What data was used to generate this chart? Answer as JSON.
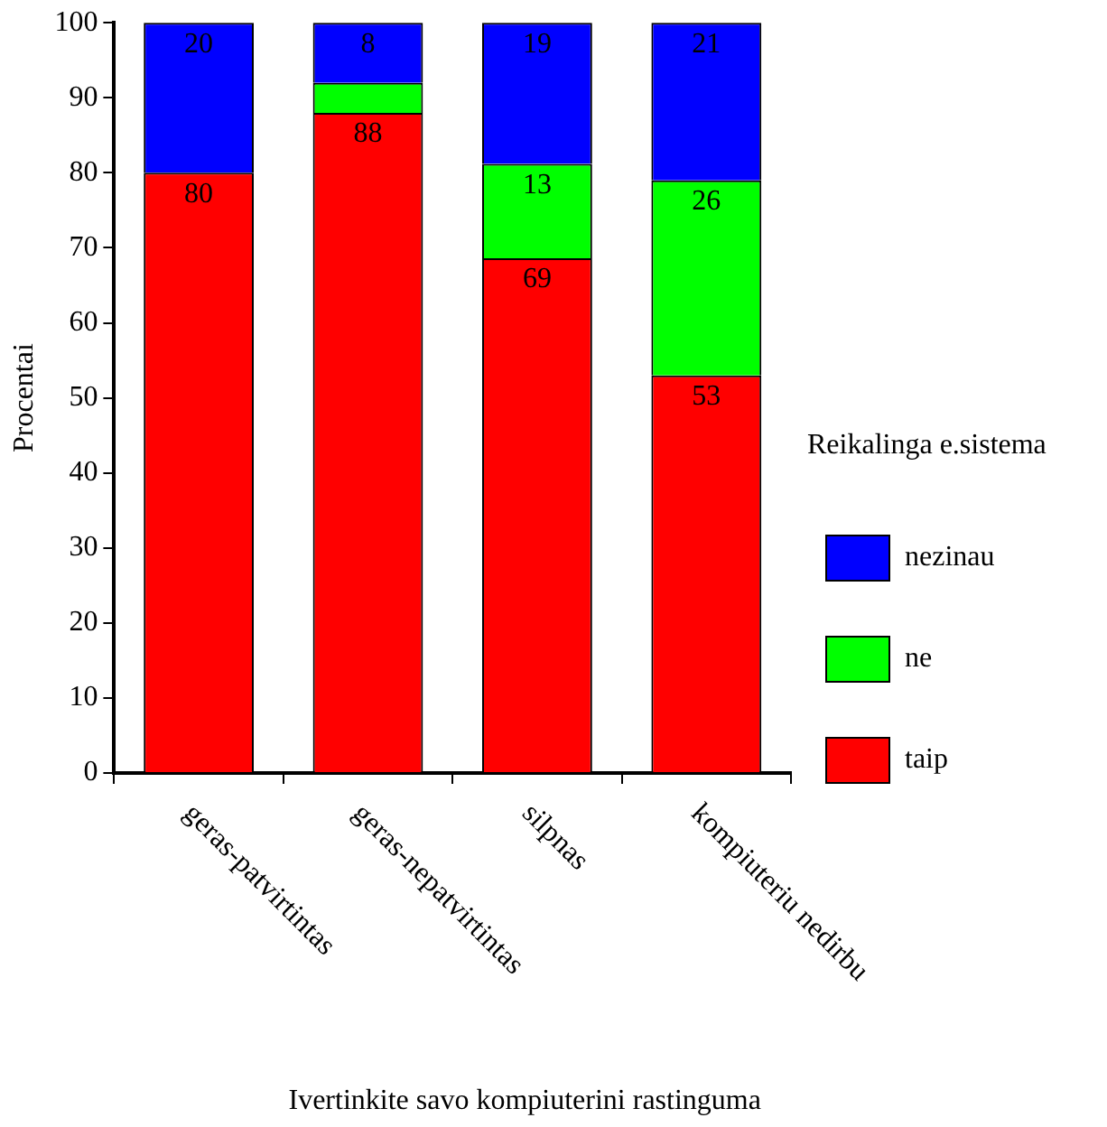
{
  "chart_data": {
    "type": "bar",
    "stacked": true,
    "xlabel": "Ivertinkite savo kompiuterini rastinguma",
    "ylabel": "Procentai",
    "legend_title": "Reikalinga e.sistema",
    "legend": "right",
    "grid": false,
    "categories": [
      "geras-patvirtintas",
      "geras-nepatvirtintas",
      "silpnas",
      "kompiuteriu nedirbu"
    ],
    "ylim": [
      0,
      100
    ],
    "yticks": [
      0,
      10,
      20,
      30,
      40,
      50,
      60,
      70,
      80,
      90,
      100
    ],
    "series": [
      {
        "name": "taip",
        "color": "#ff0000",
        "values": [
          80,
          88,
          68.6,
          53
        ],
        "value_labels": [
          "80",
          "88",
          "69",
          "53"
        ]
      },
      {
        "name": "ne",
        "color": "#00ff00",
        "values": [
          0,
          4,
          12.6,
          26
        ],
        "value_labels": [
          null,
          null,
          "13",
          "26"
        ]
      },
      {
        "name": "nezinau",
        "color": "#0000ff",
        "values": [
          20,
          8,
          18.8,
          21
        ],
        "value_labels": [
          "20",
          "8",
          "19",
          "21"
        ]
      }
    ]
  }
}
